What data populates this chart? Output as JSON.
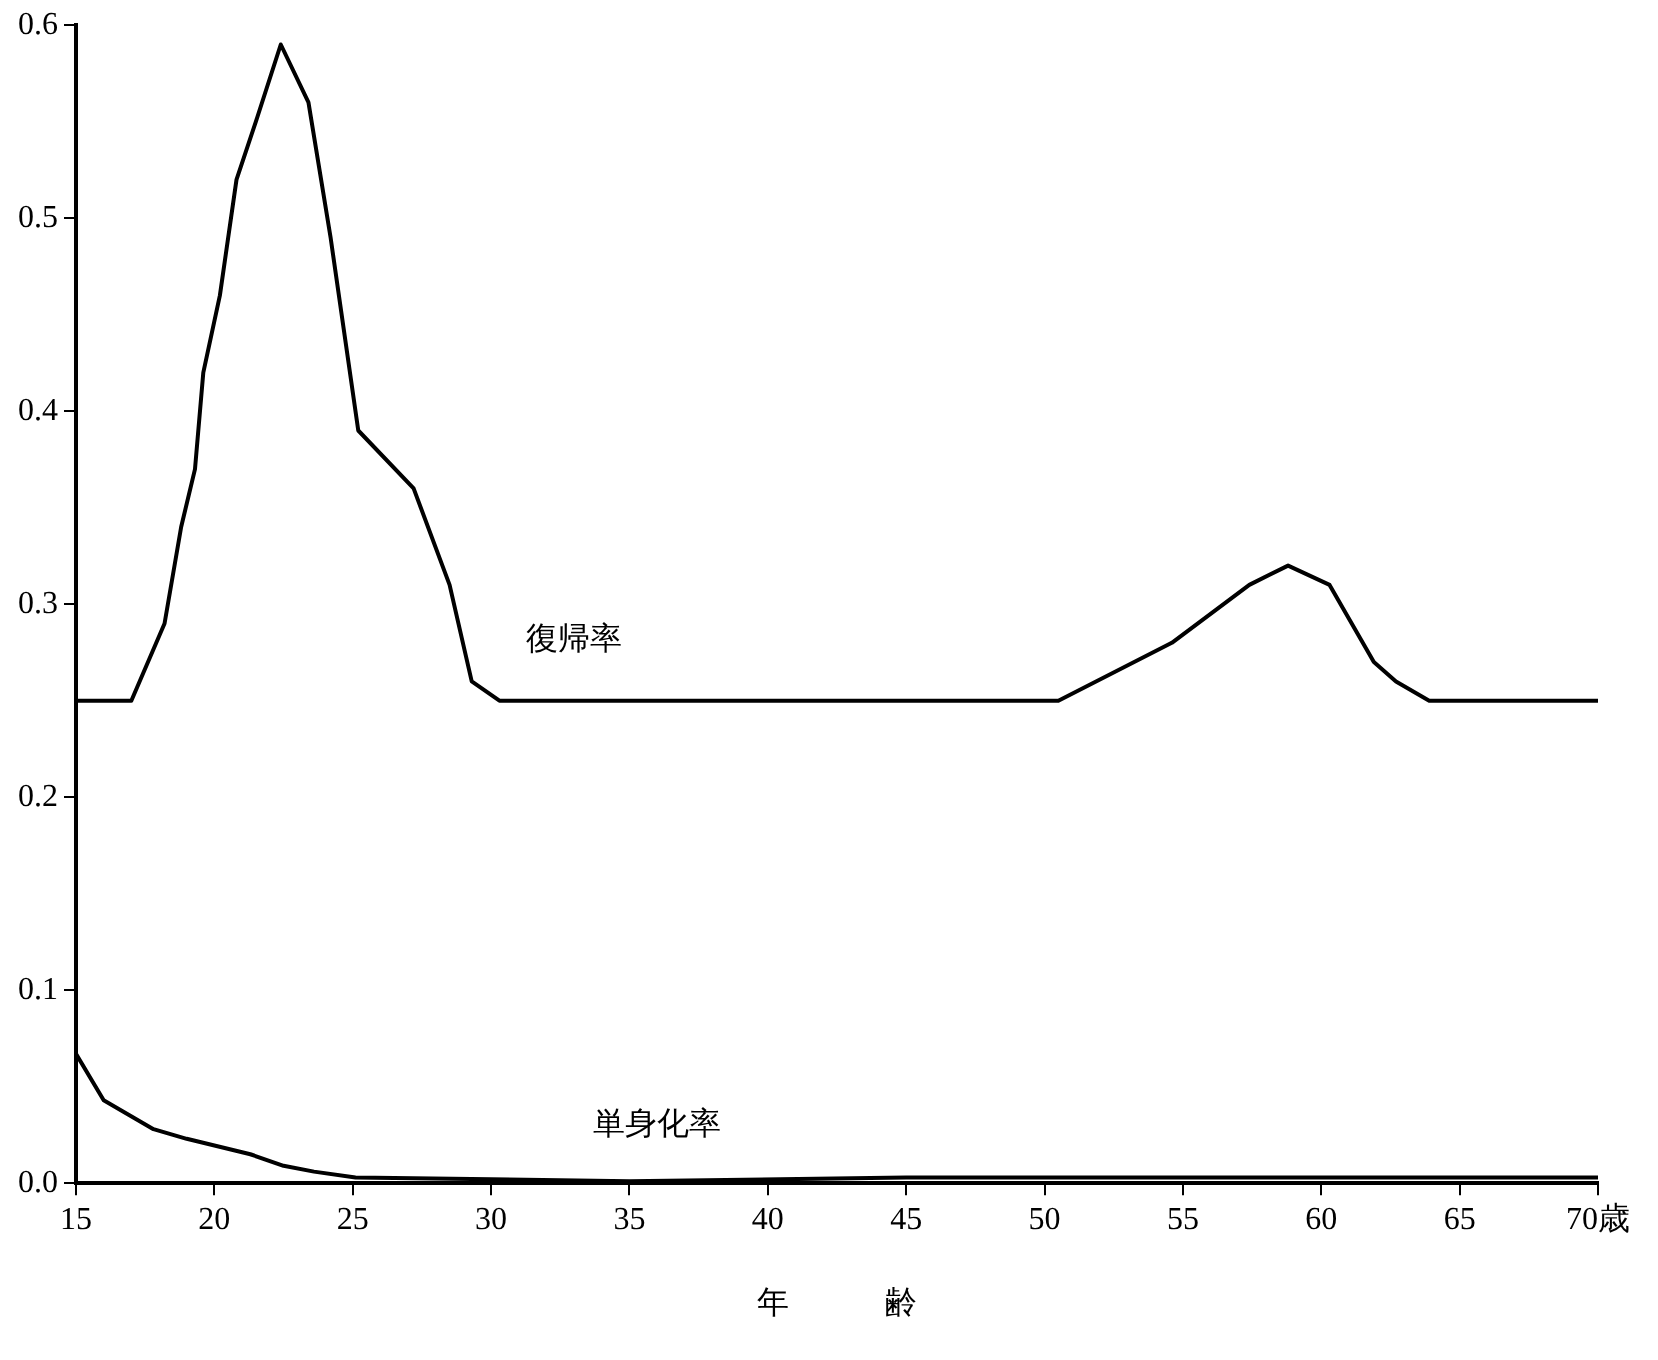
{
  "chart_data": {
    "type": "line",
    "xlabel": "年　　　齢",
    "xlim": [
      15,
      70
    ],
    "ylim": [
      0,
      0.6
    ],
    "xticks": [
      15,
      20,
      25,
      30,
      35,
      40,
      45,
      50,
      55,
      60,
      {
        "value": 65,
        "label": "65"
      },
      {
        "value": 70,
        "label": "70歳"
      }
    ],
    "yticks": [
      {
        "value": 0,
        "label": "0.0"
      },
      {
        "value": 0.1,
        "label": "0.1"
      },
      {
        "value": 0.2,
        "label": "0.2"
      },
      {
        "value": 0.3,
        "label": "0.3"
      },
      {
        "value": 0.4,
        "label": "0.4"
      },
      {
        "value": 0.5,
        "label": "0.5"
      },
      {
        "value": 0.6,
        "label": "0.6"
      }
    ],
    "marker": "none",
    "line_style": "solid",
    "series": [
      {
        "name": "復帰率",
        "color": "#000000",
        "x": [
          15,
          17,
          18.2,
          18.8,
          19.3,
          19.6,
          20.2,
          20.8,
          21.5,
          22.4,
          23.4,
          24.2,
          25.2,
          27.2,
          28.5,
          29.3,
          30.3,
          50.5,
          54.6,
          57.4,
          58.8,
          60.3,
          61.9,
          62.7,
          63.9,
          70
        ],
        "values": [
          0.25,
          0.25,
          0.29,
          0.34,
          0.37,
          0.42,
          0.46,
          0.52,
          0.55,
          0.59,
          0.56,
          0.49,
          0.39,
          0.36,
          0.31,
          0.26,
          0.25,
          0.25,
          0.28,
          0.31,
          0.32,
          0.31,
          0.27,
          0.26,
          0.25,
          0.25
        ]
      },
      {
        "name": "単身化率",
        "color": "#000000",
        "x": [
          15,
          16,
          17.8,
          19,
          21.3,
          22.5,
          23.6,
          25.1,
          30,
          35,
          45,
          70
        ],
        "values": [
          0.067,
          0.043,
          0.028,
          0.023,
          0.015,
          0.009,
          0.006,
          0.003,
          0.002,
          0.001,
          0.003,
          0.003
        ]
      }
    ]
  }
}
